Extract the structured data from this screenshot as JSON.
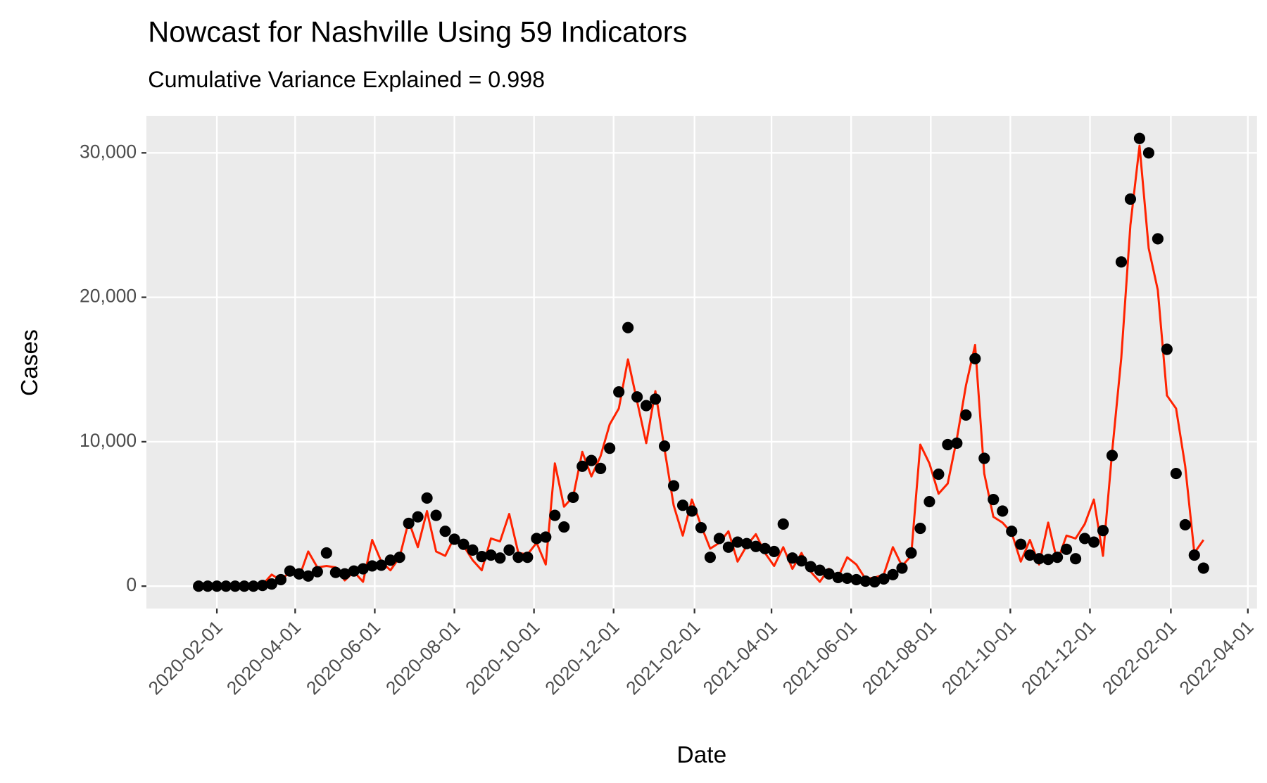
{
  "chart_data": {
    "type": "line",
    "title": "Nowcast for Nashville Using 59 Indicators",
    "subtitle": "Cumulative Variance Explained = 0.998",
    "x_label": "Date",
    "y_label": "Cases",
    "x": [
      "2020-01-18",
      "2020-01-25",
      "2020-02-01",
      "2020-02-08",
      "2020-02-15",
      "2020-02-22",
      "2020-02-29",
      "2020-03-07",
      "2020-03-14",
      "2020-03-21",
      "2020-03-28",
      "2020-04-04",
      "2020-04-11",
      "2020-04-18",
      "2020-04-25",
      "2020-05-02",
      "2020-05-09",
      "2020-05-16",
      "2020-05-23",
      "2020-05-30",
      "2020-06-06",
      "2020-06-13",
      "2020-06-20",
      "2020-06-27",
      "2020-07-04",
      "2020-07-11",
      "2020-07-18",
      "2020-07-25",
      "2020-08-01",
      "2020-08-08",
      "2020-08-15",
      "2020-08-22",
      "2020-08-29",
      "2020-09-05",
      "2020-09-12",
      "2020-09-19",
      "2020-09-26",
      "2020-10-03",
      "2020-10-10",
      "2020-10-17",
      "2020-10-24",
      "2020-10-31",
      "2020-11-07",
      "2020-11-14",
      "2020-11-21",
      "2020-11-28",
      "2020-12-05",
      "2020-12-12",
      "2020-12-19",
      "2020-12-26",
      "2021-01-02",
      "2021-01-09",
      "2021-01-16",
      "2021-01-23",
      "2021-01-30",
      "2021-02-06",
      "2021-02-13",
      "2021-02-20",
      "2021-02-27",
      "2021-03-06",
      "2021-03-13",
      "2021-03-20",
      "2021-03-27",
      "2021-04-03",
      "2021-04-10",
      "2021-04-17",
      "2021-04-24",
      "2021-05-01",
      "2021-05-08",
      "2021-05-15",
      "2021-05-22",
      "2021-05-29",
      "2021-06-05",
      "2021-06-12",
      "2021-06-19",
      "2021-06-26",
      "2021-07-03",
      "2021-07-10",
      "2021-07-17",
      "2021-07-24",
      "2021-07-31",
      "2021-08-07",
      "2021-08-14",
      "2021-08-21",
      "2021-08-28",
      "2021-09-04",
      "2021-09-11",
      "2021-09-18",
      "2021-09-25",
      "2021-10-02",
      "2021-10-09",
      "2021-10-16",
      "2021-10-23",
      "2021-10-30",
      "2021-11-06",
      "2021-11-13",
      "2021-11-20",
      "2021-11-27",
      "2021-12-04",
      "2021-12-11",
      "2021-12-18",
      "2021-12-25",
      "2022-01-01",
      "2022-01-08",
      "2022-01-15",
      "2022-01-22",
      "2022-01-29",
      "2022-02-05",
      "2022-02-12",
      "2022-02-19",
      "2022-02-26"
    ],
    "series": [
      {
        "mark": "line",
        "color": "#ff2200",
        "values": [
          0,
          0,
          0,
          0,
          0,
          0,
          0,
          100,
          800,
          400,
          1000,
          600,
          2400,
          1300,
          1400,
          1300,
          400,
          1000,
          300,
          3200,
          1700,
          1100,
          2000,
          4500,
          2700,
          5200,
          2400,
          2100,
          3400,
          2800,
          1800,
          1100,
          3300,
          3100,
          5000,
          2300,
          2200,
          3000,
          1500,
          8500,
          5500,
          6200,
          9300,
          7600,
          9000,
          11200,
          12300,
          15700,
          12800,
          9900,
          13500,
          9500,
          5600,
          3500,
          6000,
          4200,
          2600,
          3000,
          3800,
          1700,
          2800,
          3600,
          2300,
          1400,
          2700,
          1200,
          2300,
          1000,
          300,
          1200,
          600,
          2000,
          1500,
          500,
          600,
          800,
          2700,
          1400,
          2100,
          9800,
          8500,
          6400,
          7100,
          10200,
          13900,
          16700,
          7800,
          4800,
          4400,
          3700,
          1700,
          3200,
          1500,
          4400,
          1700,
          3500,
          3300,
          4300,
          6000,
          2100,
          9300,
          15800,
          25000,
          30500,
          23400,
          20500,
          13200,
          12300,
          8300,
          2300,
          3200
        ]
      },
      {
        "mark": "point",
        "color": "#000000",
        "values": [
          0,
          0,
          0,
          0,
          0,
          0,
          0,
          50,
          150,
          450,
          1050,
          850,
          700,
          1000,
          2300,
          950,
          850,
          1050,
          1200,
          1400,
          1450,
          1800,
          2000,
          4350,
          4800,
          6100,
          4900,
          3800,
          3250,
          2900,
          2500,
          2050,
          2150,
          1950,
          2500,
          2000,
          2000,
          3300,
          3400,
          4900,
          4100,
          6150,
          8300,
          8700,
          8150,
          9550,
          13450,
          17900,
          13100,
          12500,
          12950,
          9700,
          6950,
          5600,
          5200,
          4050,
          2000,
          3300,
          2700,
          3050,
          2950,
          2750,
          2600,
          2400,
          4300,
          1950,
          1750,
          1350,
          1100,
          850,
          600,
          550,
          450,
          350,
          300,
          500,
          800,
          1250,
          2300,
          4000,
          5850,
          7750,
          9800,
          9900,
          11850,
          15750,
          8850,
          6000,
          5200,
          3800,
          2900,
          2150,
          1900,
          1850,
          2000,
          2550,
          1900,
          3300,
          3050,
          3850,
          9050,
          22450,
          26800,
          31000,
          30000,
          24050,
          16400,
          7800,
          4250,
          2150,
          1250
        ]
      }
    ],
    "xlim": [
      "2019-12-09",
      "2022-04-08"
    ],
    "xticks": [
      "2020-02-01",
      "2020-04-01",
      "2020-06-01",
      "2020-08-01",
      "2020-10-01",
      "2020-12-01",
      "2021-02-01",
      "2021-04-01",
      "2021-06-01",
      "2021-08-01",
      "2021-10-01",
      "2021-12-01",
      "2022-02-01",
      "2022-04-01"
    ],
    "ylim": [
      -1550,
      32550
    ],
    "yticks": [
      0,
      {
        "value": 10000,
        "label": "10,000"
      },
      {
        "value": 20000,
        "label": "20,000"
      },
      {
        "value": 30000,
        "label": "30,000"
      }
    ],
    "grid": true
  }
}
